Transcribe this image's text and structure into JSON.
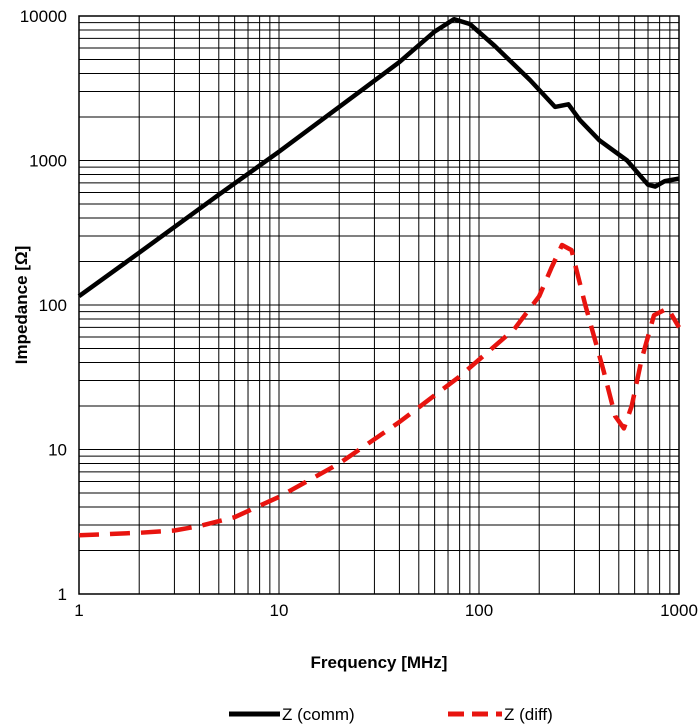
{
  "chart_data": {
    "type": "line",
    "xscale": "log",
    "yscale": "log",
    "xlim": [
      1,
      1000
    ],
    "ylim": [
      1,
      10000
    ],
    "xlabel": "Frequency [MHz]",
    "ylabel": "Impedance [Ω]",
    "x_ticks": [
      "1",
      "10",
      "100",
      "1000"
    ],
    "y_ticks": [
      "1",
      "10",
      "100",
      "1000",
      "10000"
    ],
    "grid": "major and minor",
    "legend_position": "bottom",
    "series": [
      {
        "name": "Z (comm)",
        "color": "#000000",
        "style": "solid",
        "x": [
          1,
          2,
          5,
          10,
          20,
          40,
          60,
          75,
          90,
          120,
          180,
          240,
          280,
          320,
          400,
          550,
          700,
          760,
          850,
          1000
        ],
        "y": [
          115,
          230,
          580,
          1150,
          2350,
          4800,
          7800,
          9500,
          8800,
          6200,
          3600,
          2350,
          2450,
          1900,
          1380,
          1000,
          680,
          660,
          720,
          750
        ]
      },
      {
        "name": "Z (diff)",
        "color": "#e8140f",
        "style": "dashed",
        "x": [
          1,
          2,
          3,
          4,
          6,
          10,
          20,
          40,
          80,
          150,
          200,
          230,
          260,
          290,
          340,
          420,
          480,
          530,
          580,
          650,
          750,
          880,
          1000
        ],
        "y": [
          2.55,
          2.65,
          2.75,
          2.95,
          3.4,
          4.7,
          8.0,
          15.5,
          32,
          68,
          115,
          180,
          260,
          240,
          100,
          35,
          17,
          14,
          20,
          42,
          85,
          95,
          70
        ]
      }
    ]
  }
}
